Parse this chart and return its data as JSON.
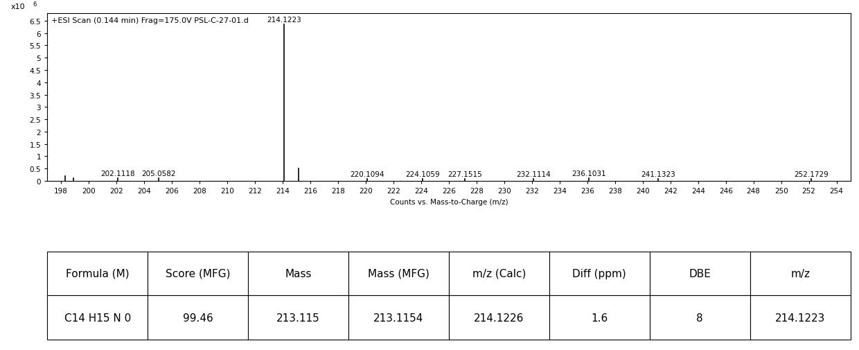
{
  "title": "+ESI Scan (0.144 min) Frag=175.0V PSL-C-27-01.d",
  "xlabel": "Counts vs. Mass-to-Charge (m/z)",
  "xmin": 197,
  "xmax": 255,
  "ymin": 0,
  "ymax": 6.8,
  "xticks": [
    198,
    200,
    202,
    204,
    206,
    208,
    210,
    212,
    214,
    216,
    218,
    220,
    222,
    224,
    226,
    228,
    230,
    232,
    234,
    236,
    238,
    240,
    242,
    244,
    246,
    248,
    250,
    252,
    254
  ],
  "yticks": [
    0,
    0.5,
    1,
    1.5,
    2,
    2.5,
    3,
    3.5,
    4,
    4.5,
    5,
    5.5,
    6,
    6.5
  ],
  "ytick_labels": [
    "0",
    "0.5",
    "1",
    "1.5",
    "2",
    "2.5",
    "3",
    "3.5",
    "4",
    "4.5",
    "5",
    "5.5",
    "6",
    "6.5"
  ],
  "ylabel_text": "x10 6",
  "peaks": [
    {
      "mz": 198.3,
      "intensity": 0.2,
      "label": null
    },
    {
      "mz": 198.9,
      "intensity": 0.12,
      "label": null
    },
    {
      "mz": 202.1118,
      "intensity": 0.1,
      "label": "202.1118"
    },
    {
      "mz": 205.0582,
      "intensity": 0.1,
      "label": "205.0582"
    },
    {
      "mz": 214.1223,
      "intensity": 6.35,
      "label": "214.1223"
    },
    {
      "mz": 215.1253,
      "intensity": 0.5,
      "label": null
    },
    {
      "mz": 220.1094,
      "intensity": 0.09,
      "label": "220.1094"
    },
    {
      "mz": 224.1059,
      "intensity": 0.09,
      "label": "224.1059"
    },
    {
      "mz": 227.1515,
      "intensity": 0.09,
      "label": "227.1515"
    },
    {
      "mz": 232.1114,
      "intensity": 0.09,
      "label": "232.1114"
    },
    {
      "mz": 236.1031,
      "intensity": 0.1,
      "label": "236.1031"
    },
    {
      "mz": 241.1323,
      "intensity": 0.08,
      "label": "241.1323"
    },
    {
      "mz": 252.1729,
      "intensity": 0.09,
      "label": "252.1729"
    }
  ],
  "table_headers": [
    "Formula (M)",
    "Score (MFG)",
    "Mass",
    "Mass (MFG)",
    "m/z (Calc)",
    "Diff (ppm)",
    "DBE",
    "m/z"
  ],
  "table_row": [
    "C14 H15 N 0",
    "99.46",
    "213.115",
    "213.1154",
    "214.1226",
    "1.6",
    "8",
    "214.1223"
  ],
  "bg_color": "#ffffff",
  "line_color": "#000000",
  "peak_label_fontsize": 7.5,
  "axis_fontsize": 7.5,
  "title_fontsize": 8,
  "table_fontsize": 11
}
